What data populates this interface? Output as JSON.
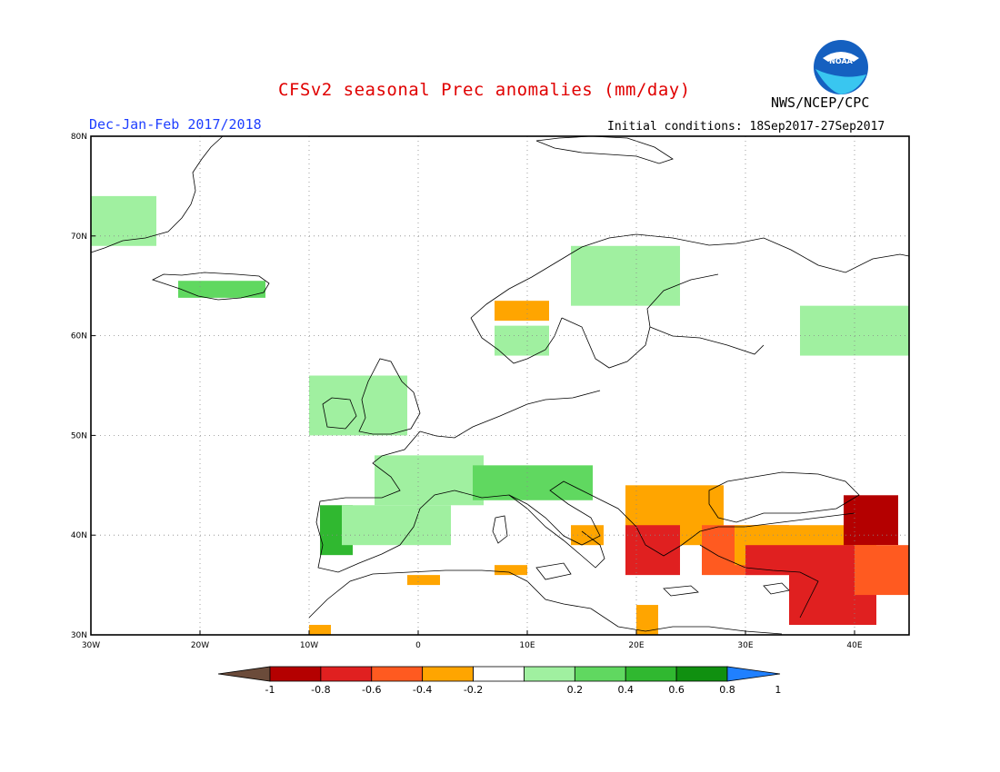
{
  "header": {
    "title": "CFSv2 seasonal Prec anomalies (mm/day)",
    "organization": "NWS/NCEP/CPC",
    "season": "Dec-Jan-Feb 2017/2018",
    "initial_conditions": "Initial conditions: 18Sep2017-27Sep2017",
    "logo_text": "NOAA"
  },
  "map": {
    "lon_range": [
      -30,
      45
    ],
    "lat_range": [
      30,
      80
    ],
    "lat_labels": [
      "80N",
      "70N",
      "60N",
      "50N",
      "40N",
      "30N"
    ],
    "lon_labels": [
      "30W",
      "20W",
      "10W",
      "0",
      "10E",
      "20E",
      "30E",
      "40E"
    ],
    "grid": true
  },
  "colorbar": {
    "labels": [
      "-1",
      "-0.8",
      "-0.6",
      "-0.4",
      "-0.2",
      "0.2",
      "0.4",
      "0.6",
      "0.8",
      "1"
    ],
    "colors": [
      "#6b4b3a",
      "#b40000",
      "#e02020",
      "#ff5a20",
      "#ffa500",
      "#ffffff",
      "#a0f0a0",
      "#60d860",
      "#30b830",
      "#109010",
      "#2080ff"
    ]
  },
  "anomaly_regions": [
    {
      "name": "greenland-east",
      "lon": [
        -30,
        -24
      ],
      "lat": [
        69,
        74
      ],
      "color": "#a0f0a0"
    },
    {
      "name": "iceland",
      "lon": [
        -22,
        -14
      ],
      "lat": [
        63.8,
        65.5
      ],
      "color": "#60d860"
    },
    {
      "name": "norway-north",
      "lon": [
        14,
        24
      ],
      "lat": [
        63,
        69
      ],
      "color": "#a0f0a0"
    },
    {
      "name": "norway-west-wet",
      "lon": [
        7,
        12
      ],
      "lat": [
        61.5,
        63.5
      ],
      "color": "#ffa500"
    },
    {
      "name": "norway-south",
      "lon": [
        7,
        12
      ],
      "lat": [
        58,
        61
      ],
      "color": "#a0f0a0"
    },
    {
      "name": "uk-ireland",
      "lon": [
        -10,
        -1
      ],
      "lat": [
        50,
        56
      ],
      "color": "#a0f0a0"
    },
    {
      "name": "russia-nw",
      "lon": [
        35,
        45
      ],
      "lat": [
        58,
        63
      ],
      "color": "#a0f0a0"
    },
    {
      "name": "france",
      "lon": [
        -4,
        6
      ],
      "lat": [
        43,
        48
      ],
      "color": "#a0f0a0"
    },
    {
      "name": "alps",
      "lon": [
        5,
        16
      ],
      "lat": [
        43.5,
        47
      ],
      "color": "#60d860"
    },
    {
      "name": "iberia-nw",
      "lon": [
        -9,
        -6
      ],
      "lat": [
        38,
        43
      ],
      "color": "#30b830"
    },
    {
      "name": "iberia-north",
      "lon": [
        -7,
        3
      ],
      "lat": [
        39,
        43
      ],
      "color": "#a0f0a0"
    },
    {
      "name": "balkans-south",
      "lon": [
        19,
        28
      ],
      "lat": [
        39,
        45
      ],
      "color": "#ffa500"
    },
    {
      "name": "greece",
      "lon": [
        19,
        24
      ],
      "lat": [
        36,
        41
      ],
      "color": "#e02020"
    },
    {
      "name": "turkey-west",
      "lon": [
        26,
        34
      ],
      "lat": [
        36,
        41
      ],
      "color": "#ff5a20"
    },
    {
      "name": "turkey-central",
      "lon": [
        29,
        42
      ],
      "lat": [
        37,
        41
      ],
      "color": "#ffa500"
    },
    {
      "name": "turkey-south",
      "lon": [
        30,
        40
      ],
      "lat": [
        36,
        39
      ],
      "color": "#e02020"
    },
    {
      "name": "caucasus",
      "lon": [
        39,
        44
      ],
      "lat": [
        39,
        44
      ],
      "color": "#b40000"
    },
    {
      "name": "levant",
      "lon": [
        34,
        42
      ],
      "lat": [
        31,
        37
      ],
      "color": "#e02020"
    },
    {
      "name": "iraq-north",
      "lon": [
        40,
        45
      ],
      "lat": [
        34,
        39
      ],
      "color": "#ff5a20"
    },
    {
      "name": "south-italy",
      "lon": [
        14,
        17
      ],
      "lat": [
        39,
        41
      ],
      "color": "#ffa500"
    },
    {
      "name": "north-africa",
      "lon": [
        -1,
        2
      ],
      "lat": [
        35,
        36
      ],
      "color": "#ffa500"
    },
    {
      "name": "tunisia",
      "lon": [
        7,
        10
      ],
      "lat": [
        36,
        37
      ],
      "color": "#ffa500"
    },
    {
      "name": "libya-east",
      "lon": [
        20,
        22
      ],
      "lat": [
        30,
        33
      ],
      "color": "#ffa500"
    },
    {
      "name": "morocco",
      "lon": [
        -10,
        -8
      ],
      "lat": [
        30,
        31
      ],
      "color": "#ffa500"
    }
  ]
}
